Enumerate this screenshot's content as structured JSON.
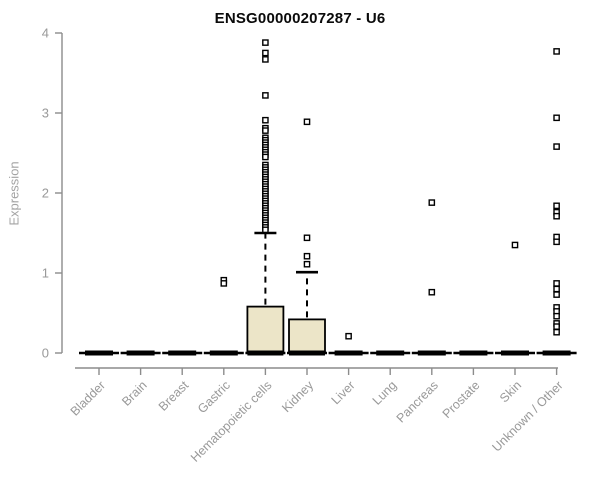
{
  "chart_data": {
    "type": "box",
    "title": "ENSG00000207287 - U6",
    "ylabel": "Expression",
    "xlabel": "",
    "ylim": [
      0,
      4
    ],
    "yticks": [
      0,
      1,
      2,
      3,
      4
    ],
    "grid": false,
    "legend": "none",
    "colors": {
      "box_fill": "#ece5c8",
      "box_stroke": "#000000",
      "median": "#000000",
      "axis": "#8c8c8c",
      "tick_label": "#999999",
      "title": "#0a0a0a",
      "outlier_stroke": "#000000",
      "outlier_fill": "#ffffff"
    },
    "categories": [
      "Bladder",
      "Brain",
      "Breast",
      "Gastric",
      "Hematopoietic cells",
      "Kidney",
      "Liver",
      "Lung",
      "Pancreas",
      "Prostate",
      "Skin",
      "Unknown / Other"
    ],
    "series": [
      {
        "category": "Bladder",
        "min": 0,
        "q1": 0,
        "median": 0,
        "q3": 0,
        "whisker_high": 0,
        "outliers": []
      },
      {
        "category": "Brain",
        "min": 0,
        "q1": 0,
        "median": 0,
        "q3": 0,
        "whisker_high": 0,
        "outliers": []
      },
      {
        "category": "Breast",
        "min": 0,
        "q1": 0,
        "median": 0,
        "q3": 0,
        "whisker_high": 0,
        "outliers": []
      },
      {
        "category": "Gastric",
        "min": 0,
        "q1": 0,
        "median": 0,
        "q3": 0,
        "whisker_high": 0,
        "outliers": [
          0.91,
          0.87
        ]
      },
      {
        "category": "Hematopoietic cells",
        "min": 0,
        "q1": 0,
        "median": 0,
        "q3": 0.58,
        "whisker_high": 1.5,
        "outliers": [
          3.88,
          3.75,
          3.67,
          3.22,
          2.91,
          2.81,
          2.78,
          2.69,
          2.66,
          2.63,
          2.6,
          2.57,
          2.54,
          2.51,
          2.48,
          2.45,
          2.35,
          2.32,
          2.29,
          2.26,
          2.23,
          2.2,
          2.17,
          2.14,
          2.11,
          2.08,
          2.05,
          2.02,
          1.99,
          1.96,
          1.93,
          1.9,
          1.87,
          1.84,
          1.81,
          1.78,
          1.75,
          1.72,
          1.69,
          1.66,
          1.63,
          1.6,
          1.57,
          1.54
        ]
      },
      {
        "category": "Kidney",
        "min": 0,
        "q1": 0,
        "median": 0,
        "q3": 0.42,
        "whisker_high": 1.01,
        "outliers": [
          2.89,
          1.44,
          1.21,
          1.11
        ]
      },
      {
        "category": "Liver",
        "min": 0,
        "q1": 0,
        "median": 0,
        "q3": 0,
        "whisker_high": 0,
        "outliers": [
          0.21
        ]
      },
      {
        "category": "Lung",
        "min": 0,
        "q1": 0,
        "median": 0,
        "q3": 0,
        "whisker_high": 0,
        "outliers": []
      },
      {
        "category": "Pancreas",
        "min": 0,
        "q1": 0,
        "median": 0,
        "q3": 0,
        "whisker_high": 0,
        "outliers": [
          1.88,
          0.76
        ]
      },
      {
        "category": "Prostate",
        "min": 0,
        "q1": 0,
        "median": 0,
        "q3": 0,
        "whisker_high": 0,
        "outliers": []
      },
      {
        "category": "Skin",
        "min": 0,
        "q1": 0,
        "median": 0,
        "q3": 0,
        "whisker_high": 0,
        "outliers": [
          1.35
        ]
      },
      {
        "category": "Unknown / Other",
        "min": 0,
        "q1": 0,
        "median": 0,
        "q3": 0,
        "whisker_high": 0,
        "outliers": [
          3.77,
          2.94,
          2.58,
          1.84,
          1.76,
          1.71,
          1.45,
          1.39,
          0.87,
          0.8,
          0.73,
          0.57,
          0.52,
          0.46,
          0.37,
          0.33,
          0.26
        ]
      }
    ]
  }
}
